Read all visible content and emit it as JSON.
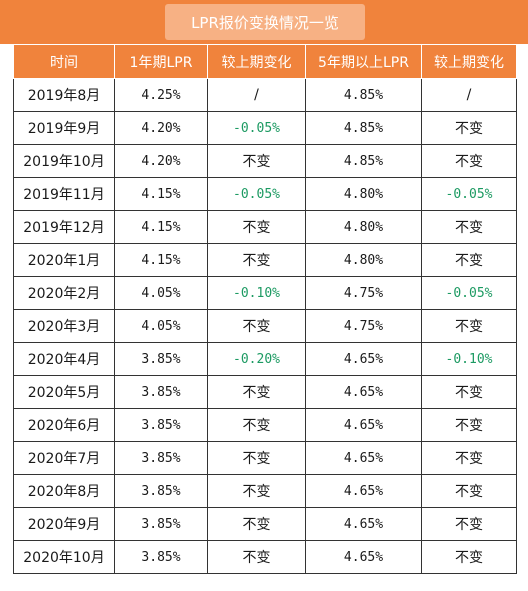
{
  "title": "LPR报价变换情况一览",
  "colors": {
    "header_orange": "#f0833c",
    "title_tab": "#f7b184",
    "decrease_green": "#1c9a62"
  },
  "headers": [
    "时间",
    "1年期LPR",
    "较上期变化",
    "5年期以上LPR",
    "较上期变化"
  ],
  "rows": [
    [
      "2019年8月",
      "4.25%",
      "/",
      "4.85%",
      "/"
    ],
    [
      "2019年9月",
      "4.20%",
      "-0.05%",
      "4.85%",
      "不变"
    ],
    [
      "2019年10月",
      "4.20%",
      "不变",
      "4.85%",
      "不变"
    ],
    [
      "2019年11月",
      "4.15%",
      "-0.05%",
      "4.80%",
      "-0.05%"
    ],
    [
      "2019年12月",
      "4.15%",
      "不变",
      "4.80%",
      "不变"
    ],
    [
      "2020年1月",
      "4.15%",
      "不变",
      "4.80%",
      "不变"
    ],
    [
      "2020年2月",
      "4.05%",
      "-0.10%",
      "4.75%",
      "-0.05%"
    ],
    [
      "2020年3月",
      "4.05%",
      "不变",
      "4.75%",
      "不变"
    ],
    [
      "2020年4月",
      "3.85%",
      "-0.20%",
      "4.65%",
      "-0.10%"
    ],
    [
      "2020年5月",
      "3.85%",
      "不变",
      "4.65%",
      "不变"
    ],
    [
      "2020年6月",
      "3.85%",
      "不变",
      "4.65%",
      "不变"
    ],
    [
      "2020年7月",
      "3.85%",
      "不变",
      "4.65%",
      "不变"
    ],
    [
      "2020年8月",
      "3.85%",
      "不变",
      "4.65%",
      "不变"
    ],
    [
      "2020年9月",
      "3.85%",
      "不变",
      "4.65%",
      "不变"
    ],
    [
      "2020年10月",
      "3.85%",
      "不变",
      "4.65%",
      "不变"
    ]
  ]
}
